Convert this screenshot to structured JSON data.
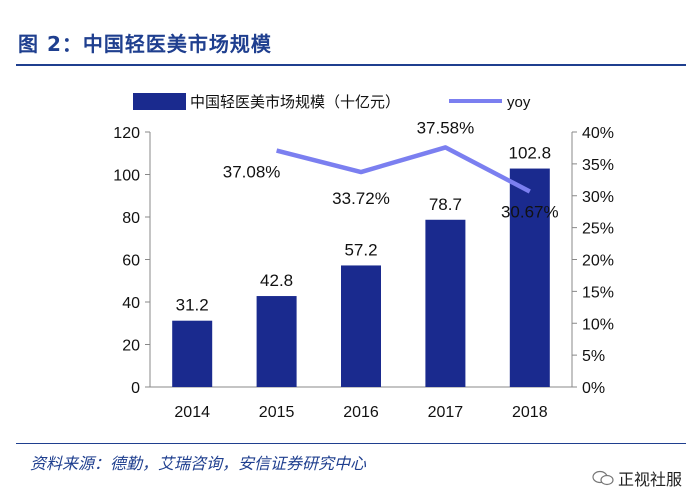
{
  "figure_title": "图 2：中国轻医美市场规模",
  "source_text": "资料来源：德勤，艾瑞咨询，安信证券研究中心",
  "watermark_text": "正视社服",
  "colors": {
    "bar": "#1a2a8e",
    "line": "#7b7ff0",
    "title": "#1f3f8f"
  },
  "chart_data": {
    "type": "bar+line",
    "categories": [
      "2014",
      "2015",
      "2016",
      "2017",
      "2018"
    ],
    "series": [
      {
        "name": "中国轻医美市场规模（十亿元）",
        "type": "bar",
        "axis": "left",
        "values": [
          31.2,
          42.8,
          57.2,
          78.7,
          102.8
        ],
        "labels": [
          "31.2",
          "42.8",
          "57.2",
          "78.7",
          "102.8"
        ]
      },
      {
        "name": "yoy",
        "type": "line",
        "axis": "right",
        "values": [
          null,
          37.08,
          33.72,
          37.58,
          30.67
        ],
        "labels": [
          "",
          "37.08%",
          "33.72%",
          "37.58%",
          "30.67%"
        ]
      }
    ],
    "y_left": {
      "min": 0,
      "max": 120,
      "ticks": [
        "0",
        "20",
        "40",
        "60",
        "80",
        "100",
        "120"
      ]
    },
    "y_right": {
      "min": 0,
      "max": 40,
      "ticks": [
        "0%",
        "5%",
        "10%",
        "15%",
        "20%",
        "25%",
        "30%",
        "35%",
        "40%"
      ]
    },
    "legend": {
      "position": "top",
      "entries": [
        "中国轻医美市场规模（十亿元）",
        "yoy"
      ]
    }
  }
}
